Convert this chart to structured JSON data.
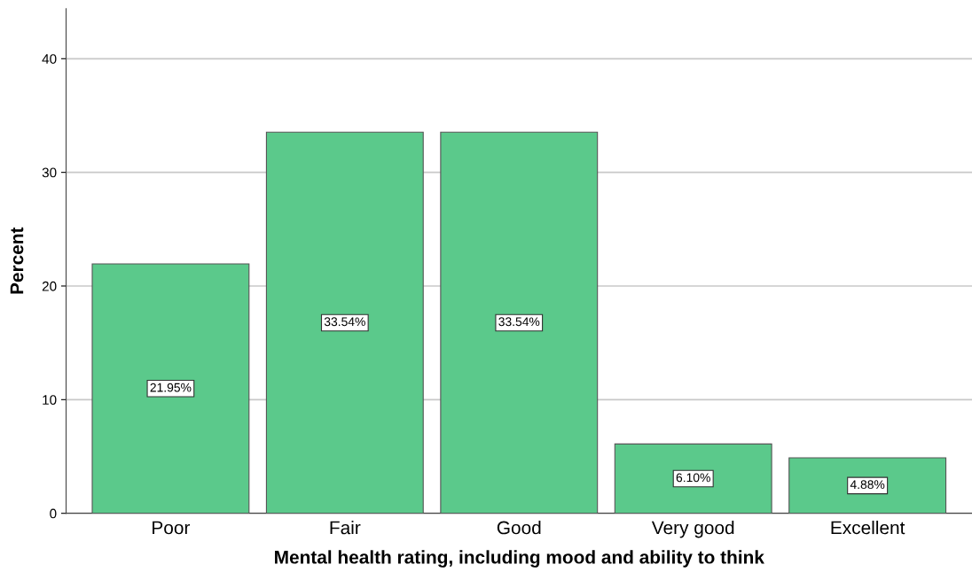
{
  "chart_data": {
    "type": "bar",
    "xlabel": "Mental health rating, including mood and ability to think",
    "ylabel": "Percent",
    "categories": [
      "Poor",
      "Fair",
      "Good",
      "Very good",
      "Excellent"
    ],
    "values": [
      21.95,
      33.54,
      33.54,
      6.1,
      4.88
    ],
    "value_labels": [
      "21.95%",
      "33.54%",
      "33.54%",
      "6.10%",
      "4.88%"
    ],
    "color": "#5bc98b",
    "ylim": [
      0,
      44.4
    ],
    "yticks": [
      0,
      10,
      20,
      30,
      40
    ],
    "grid": "y"
  }
}
